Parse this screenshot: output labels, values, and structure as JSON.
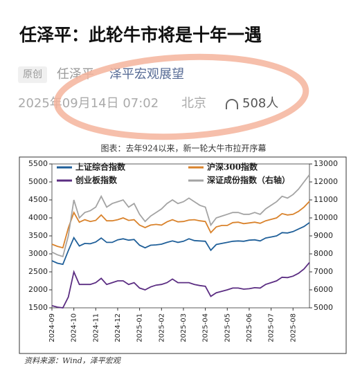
{
  "article": {
    "title": "任泽平：此轮牛市将是十年一遇",
    "tag": "原创",
    "author": "任泽平",
    "account": "泽平宏观展望",
    "date": "2025年09月14日 07:02",
    "location": "北京",
    "listeners": "508人"
  },
  "chart_data": {
    "type": "line",
    "title": "图表：去年924以来，新一轮大牛市拉开序幕",
    "source": "资料来源：Wind，泽平宏观",
    "categories": [
      "2024-09",
      null,
      null,
      null,
      "2024-10",
      null,
      null,
      null,
      "2024-11",
      null,
      null,
      null,
      "2024-12",
      null,
      null,
      null,
      "2025-01",
      null,
      null,
      null,
      "2025-02",
      null,
      null,
      null,
      "2025-03",
      null,
      null,
      null,
      "2025-04",
      null,
      null,
      null,
      "2025-05",
      null,
      null,
      null,
      "2025-06",
      null,
      null,
      null,
      "2025-07",
      null,
      null,
      null,
      "2025-08",
      null,
      null,
      null
    ],
    "series": [
      {
        "name": "上证综合指数",
        "color": "#1f5f99",
        "values": [
          2810,
          2740,
          2710,
          3090,
          3450,
          3220,
          3290,
          3280,
          3330,
          3440,
          3320,
          3320,
          3390,
          3420,
          3380,
          3400,
          3240,
          3170,
          3240,
          3250,
          3270,
          3320,
          3360,
          3320,
          3350,
          3420,
          3370,
          3360,
          3350,
          3100,
          3260,
          3290,
          3320,
          3350,
          3360,
          3350,
          3380,
          3390,
          3360,
          3440,
          3470,
          3500,
          3590,
          3580,
          3620,
          3690,
          3760,
          3870
        ]
      },
      {
        "name": "沪深300指数",
        "color": "#d9822b",
        "values": [
          3270,
          3210,
          3170,
          3720,
          4150,
          3880,
          3950,
          3900,
          3930,
          4080,
          3920,
          3920,
          3950,
          4000,
          3930,
          3950,
          3800,
          3730,
          3800,
          3820,
          3800,
          3890,
          3950,
          3890,
          3900,
          3940,
          3950,
          3920,
          3900,
          3590,
          3750,
          3790,
          3790,
          3870,
          3880,
          3840,
          3860,
          3880,
          3850,
          3920,
          3960,
          4000,
          4120,
          4080,
          4100,
          4180,
          4300,
          4460
        ]
      },
      {
        "name": "创业板指数",
        "color": "#5b2d82",
        "values": [
          1560,
          1520,
          1500,
          1800,
          2500,
          2150,
          2150,
          2150,
          2200,
          2320,
          2150,
          2200,
          2250,
          2250,
          2150,
          2200,
          2050,
          2000,
          2080,
          2130,
          2150,
          2200,
          2300,
          2200,
          2200,
          2200,
          2150,
          2120,
          2100,
          1820,
          1920,
          1960,
          2000,
          2050,
          2050,
          2020,
          2030,
          2060,
          2050,
          2150,
          2200,
          2250,
          2350,
          2340,
          2380,
          2460,
          2580,
          2760
        ]
      },
      {
        "name": "深证成份指数（右轴）",
        "color": "#a3a3a3",
        "axis": "y2",
        "values": [
          8100,
          7950,
          7850,
          9000,
          11000,
          10000,
          10300,
          10400,
          10600,
          11200,
          10600,
          10800,
          10900,
          11000,
          10600,
          10800,
          10200,
          9800,
          10100,
          10300,
          10500,
          10800,
          11000,
          10800,
          10900,
          11100,
          10900,
          10700,
          10600,
          9600,
          10000,
          10100,
          10200,
          10300,
          10300,
          10200,
          10200,
          10300,
          10200,
          10500,
          10700,
          10900,
          11200,
          11100,
          11300,
          11600,
          12000,
          12400
        ]
      }
    ],
    "ylim": [
      1500,
      5500
    ],
    "yticks": [
      1500,
      2000,
      2500,
      3000,
      3500,
      4000,
      4500,
      5000,
      5500
    ],
    "y2lim": [
      5000,
      13000
    ],
    "y2ticks": [
      5000,
      6000,
      7000,
      8000,
      9000,
      10000,
      11000,
      12000,
      13000
    ],
    "grid": false
  }
}
